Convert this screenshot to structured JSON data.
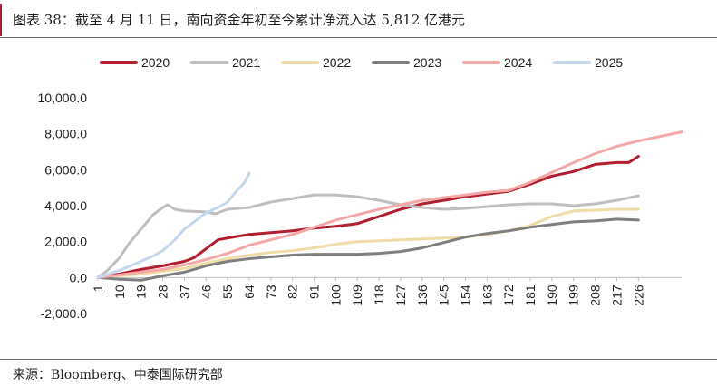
{
  "header": {
    "title": "图表 38：截至 4 月 11 日，南向资金年初至今累计净流入达 5,812 亿港元"
  },
  "footer": {
    "source": "来源：Bloomberg、中泰国际研究部"
  },
  "chart_data": {
    "type": "line",
    "title": "图表 38：截至 4 月 11 日，南向资金年初至今累计净流入达 5,812 亿港元",
    "xlabel": "",
    "ylabel": "",
    "x_ticks": [
      1,
      10,
      19,
      28,
      37,
      46,
      55,
      64,
      73,
      82,
      91,
      100,
      109,
      118,
      127,
      136,
      145,
      154,
      163,
      172,
      181,
      190,
      199,
      208,
      217,
      226
    ],
    "xlim": [
      1,
      244
    ],
    "ylim": [
      -2000,
      10000
    ],
    "y_ticks": [
      -2000,
      0,
      2000,
      4000,
      6000,
      8000,
      10000
    ],
    "y_tick_labels": [
      "-2,000.0",
      "0.0",
      "2,000.0",
      "4,000.0",
      "6,000.0",
      "8,000.0",
      "10,000.0"
    ],
    "legend_position": "top",
    "grid": false,
    "series": [
      {
        "name": "2020",
        "color": "#b01e2f",
        "width": 3,
        "points": [
          [
            1,
            0
          ],
          [
            10,
            200
          ],
          [
            19,
            450
          ],
          [
            28,
            650
          ],
          [
            37,
            900
          ],
          [
            41,
            1100
          ],
          [
            46,
            1600
          ],
          [
            51,
            2100
          ],
          [
            55,
            2200
          ],
          [
            64,
            2400
          ],
          [
            73,
            2500
          ],
          [
            82,
            2600
          ],
          [
            91,
            2750
          ],
          [
            100,
            2850
          ],
          [
            109,
            3000
          ],
          [
            118,
            3400
          ],
          [
            127,
            3800
          ],
          [
            136,
            4100
          ],
          [
            145,
            4300
          ],
          [
            154,
            4500
          ],
          [
            163,
            4650
          ],
          [
            172,
            4800
          ],
          [
            181,
            5200
          ],
          [
            190,
            5650
          ],
          [
            199,
            5900
          ],
          [
            208,
            6300
          ],
          [
            217,
            6400
          ],
          [
            222,
            6400
          ],
          [
            226,
            6750
          ]
        ]
      },
      {
        "name": "2021",
        "color": "#bfbfbf",
        "width": 3,
        "points": [
          [
            1,
            0
          ],
          [
            5,
            400
          ],
          [
            10,
            1100
          ],
          [
            14,
            1900
          ],
          [
            19,
            2700
          ],
          [
            24,
            3500
          ],
          [
            28,
            3900
          ],
          [
            30,
            4050
          ],
          [
            33,
            3800
          ],
          [
            37,
            3700
          ],
          [
            46,
            3650
          ],
          [
            50,
            3550
          ],
          [
            55,
            3800
          ],
          [
            64,
            3900
          ],
          [
            73,
            4200
          ],
          [
            82,
            4400
          ],
          [
            91,
            4600
          ],
          [
            100,
            4600
          ],
          [
            109,
            4500
          ],
          [
            118,
            4300
          ],
          [
            127,
            4050
          ],
          [
            136,
            3900
          ],
          [
            145,
            3800
          ],
          [
            154,
            3850
          ],
          [
            163,
            3950
          ],
          [
            172,
            4050
          ],
          [
            181,
            4100
          ],
          [
            190,
            4100
          ],
          [
            199,
            4000
          ],
          [
            208,
            4100
          ],
          [
            217,
            4300
          ],
          [
            226,
            4550
          ]
        ]
      },
      {
        "name": "2022",
        "color": "#f0dca7",
        "width": 3,
        "points": [
          [
            1,
            0
          ],
          [
            10,
            100
          ],
          [
            19,
            200
          ],
          [
            28,
            350
          ],
          [
            37,
            500
          ],
          [
            46,
            800
          ],
          [
            55,
            1050
          ],
          [
            64,
            1250
          ],
          [
            73,
            1400
          ],
          [
            82,
            1500
          ],
          [
            91,
            1650
          ],
          [
            100,
            1850
          ],
          [
            109,
            2000
          ],
          [
            118,
            2050
          ],
          [
            127,
            2100
          ],
          [
            136,
            2150
          ],
          [
            145,
            2200
          ],
          [
            154,
            2250
          ],
          [
            163,
            2400
          ],
          [
            172,
            2600
          ],
          [
            181,
            2900
          ],
          [
            190,
            3400
          ],
          [
            199,
            3700
          ],
          [
            208,
            3750
          ],
          [
            217,
            3800
          ],
          [
            226,
            3800
          ]
        ]
      },
      {
        "name": "2023",
        "color": "#7f7f7f",
        "width": 3,
        "points": [
          [
            1,
            0
          ],
          [
            10,
            -100
          ],
          [
            19,
            -150
          ],
          [
            28,
            100
          ],
          [
            37,
            300
          ],
          [
            46,
            650
          ],
          [
            55,
            900
          ],
          [
            64,
            1050
          ],
          [
            73,
            1150
          ],
          [
            82,
            1250
          ],
          [
            91,
            1300
          ],
          [
            100,
            1300
          ],
          [
            109,
            1300
          ],
          [
            118,
            1350
          ],
          [
            127,
            1450
          ],
          [
            136,
            1650
          ],
          [
            145,
            1950
          ],
          [
            154,
            2250
          ],
          [
            163,
            2450
          ],
          [
            172,
            2600
          ],
          [
            181,
            2800
          ],
          [
            190,
            2950
          ],
          [
            199,
            3100
          ],
          [
            208,
            3150
          ],
          [
            217,
            3250
          ],
          [
            226,
            3200
          ]
        ]
      },
      {
        "name": "2024",
        "color": "#f4a8a8",
        "width": 3,
        "points": [
          [
            1,
            0
          ],
          [
            10,
            150
          ],
          [
            19,
            300
          ],
          [
            28,
            450
          ],
          [
            37,
            700
          ],
          [
            46,
            1000
          ],
          [
            55,
            1350
          ],
          [
            64,
            1800
          ],
          [
            73,
            2100
          ],
          [
            82,
            2400
          ],
          [
            91,
            2800
          ],
          [
            100,
            3200
          ],
          [
            109,
            3500
          ],
          [
            118,
            3800
          ],
          [
            127,
            4050
          ],
          [
            136,
            4300
          ],
          [
            145,
            4450
          ],
          [
            154,
            4600
          ],
          [
            163,
            4750
          ],
          [
            172,
            4850
          ],
          [
            181,
            5300
          ],
          [
            190,
            5850
          ],
          [
            199,
            6400
          ],
          [
            208,
            6900
          ],
          [
            217,
            7300
          ],
          [
            226,
            7600
          ],
          [
            235,
            7850
          ],
          [
            244,
            8100
          ]
        ]
      },
      {
        "name": "2025",
        "color": "#c5d9ee",
        "width": 3,
        "points": [
          [
            1,
            0
          ],
          [
            10,
            400
          ],
          [
            19,
            900
          ],
          [
            24,
            1200
          ],
          [
            28,
            1500
          ],
          [
            33,
            2100
          ],
          [
            37,
            2700
          ],
          [
            42,
            3200
          ],
          [
            46,
            3600
          ],
          [
            51,
            3900
          ],
          [
            55,
            4200
          ],
          [
            58,
            4700
          ],
          [
            62,
            5300
          ],
          [
            64,
            5812
          ]
        ]
      }
    ]
  }
}
